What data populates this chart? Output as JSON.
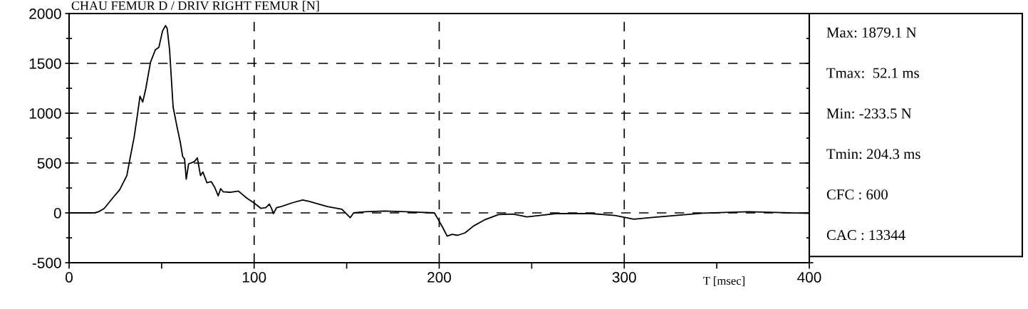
{
  "chart_data": {
    "type": "line",
    "title": "CHAU FEMUR D / DRIV RIGHT FEMUR [N]",
    "xlabel": "T [msec]",
    "x": [
      0,
      10,
      14,
      15.8,
      19.0,
      23.5,
      27.3,
      31.2,
      33.1,
      35.1,
      37.0,
      38.3,
      39.8,
      41.4,
      44.0,
      46.6,
      48.5,
      50.5,
      52.1,
      53.0,
      54.3,
      56.2,
      58.2,
      60.1,
      61.4,
      62.4,
      63.3,
      64.6,
      66.5,
      67.8,
      69.3,
      71.0,
      72.3,
      74.5,
      76.8,
      78.7,
      80.6,
      81.9,
      83.2,
      87.0,
      91.5,
      96.0,
      99.9,
      103.7,
      106.3,
      108.2,
      109.5,
      110.4,
      112.1,
      114.6,
      120.4,
      126.2,
      129.4,
      139.6,
      147.4,
      151.9,
      153.8,
      160.2,
      170.5,
      182.0,
      197.4,
      200.0,
      202.0,
      204.3,
      207.0,
      210.0,
      214.0,
      218.6,
      224.4,
      232.1,
      239.8,
      247.5,
      262.9,
      282.1,
      295.0,
      305.2,
      314.2,
      333.5,
      342.6,
      367.3,
      400.0
    ],
    "series": [
      {
        "color": "#000000",
        "values": [
          0,
          0,
          3,
          10,
          45,
          148,
          231,
          374,
          564,
          755,
          993,
          1171,
          1112,
          1243,
          1512,
          1636,
          1660,
          1826,
          1879,
          1850,
          1636,
          1064,
          874,
          707,
          564,
          540,
          338,
          493,
          505,
          517,
          552,
          374,
          410,
          302,
          314,
          255,
          171,
          243,
          212,
          207,
          219,
          148,
          100,
          45,
          52,
          88,
          40,
          -7,
          52,
          64,
          100,
          129,
          117,
          64,
          36,
          -48,
          0,
          12,
          19,
          12,
          0,
          -83,
          -150,
          -233,
          -215,
          -225,
          -200,
          -131,
          -71,
          -17,
          -12,
          -40,
          -7,
          -7,
          -26,
          -64,
          -48,
          -17,
          -2,
          12,
          -5
        ]
      }
    ],
    "xlim": [
      0,
      400
    ],
    "ylim": [
      -500,
      2000
    ],
    "xticks": [
      0,
      {
        "value": 50,
        "label": null
      },
      100,
      {
        "value": 150,
        "label": null
      },
      200,
      {
        "value": 250,
        "label": null
      },
      300,
      {
        "value": 350,
        "label": null
      },
      400
    ],
    "yticks": [
      -500,
      {
        "value": -250,
        "label": null
      },
      0,
      {
        "value": 250,
        "label": null
      },
      500,
      {
        "value": 750,
        "label": null
      },
      1000,
      {
        "value": 1250,
        "label": null
      },
      1500,
      {
        "value": 1750,
        "label": null
      },
      2000
    ],
    "grid": true,
    "line_style": "solid",
    "marker": "none",
    "annotations": [
      "Max: 1879.1 N",
      "Tmax:  52.1 ms",
      "Min: -233.5 N",
      "Tmin: 204.3 ms",
      "CFC : 600",
      "CAC : 13344"
    ]
  }
}
